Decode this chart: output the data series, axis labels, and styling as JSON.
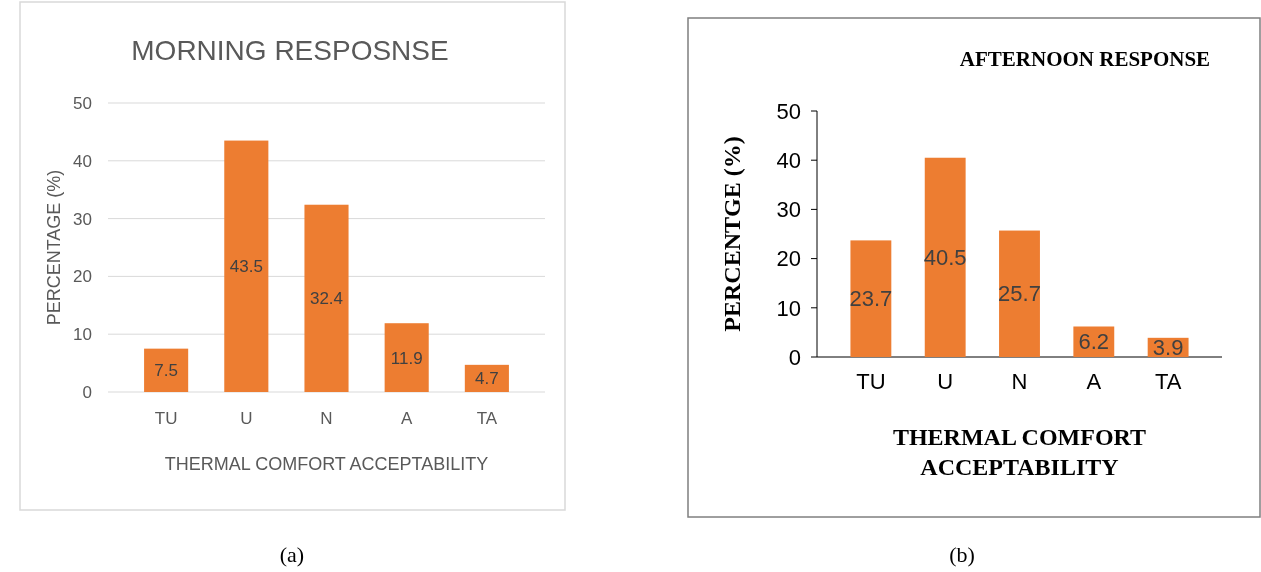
{
  "chart_data": [
    {
      "type": "bar",
      "title": "MORNING RESPOSNSE",
      "xlabel": "THERMAL COMFORT  ACCEPTABILITY",
      "ylabel": "PERCENTAGE (%)",
      "categories": [
        "TU",
        "U",
        "N",
        "A",
        "TA"
      ],
      "values": [
        7.5,
        43.5,
        32.4,
        11.9,
        4.7
      ],
      "color": "#ed7d31",
      "ylim": [
        0,
        50
      ],
      "yticks": [
        0,
        10,
        20,
        30,
        40,
        50
      ],
      "grid": "y",
      "data_labels": true,
      "annotations": [
        "(a)"
      ]
    },
    {
      "type": "bar",
      "title": "AFTERNOON RESPONSE",
      "xlabel": "THERMAL COMFORT ACCEPTABILITY",
      "ylabel": "PERCENTGE  (%)",
      "categories": [
        "TU",
        "U",
        "N",
        "A",
        "TA"
      ],
      "values": [
        23.7,
        40.5,
        25.7,
        6.2,
        3.9
      ],
      "color": "#ed7d31",
      "ylim": [
        0,
        50
      ],
      "yticks": [
        0,
        10,
        20,
        30,
        40,
        50
      ],
      "data_labels": true,
      "annotations": [
        "(b)"
      ]
    }
  ]
}
